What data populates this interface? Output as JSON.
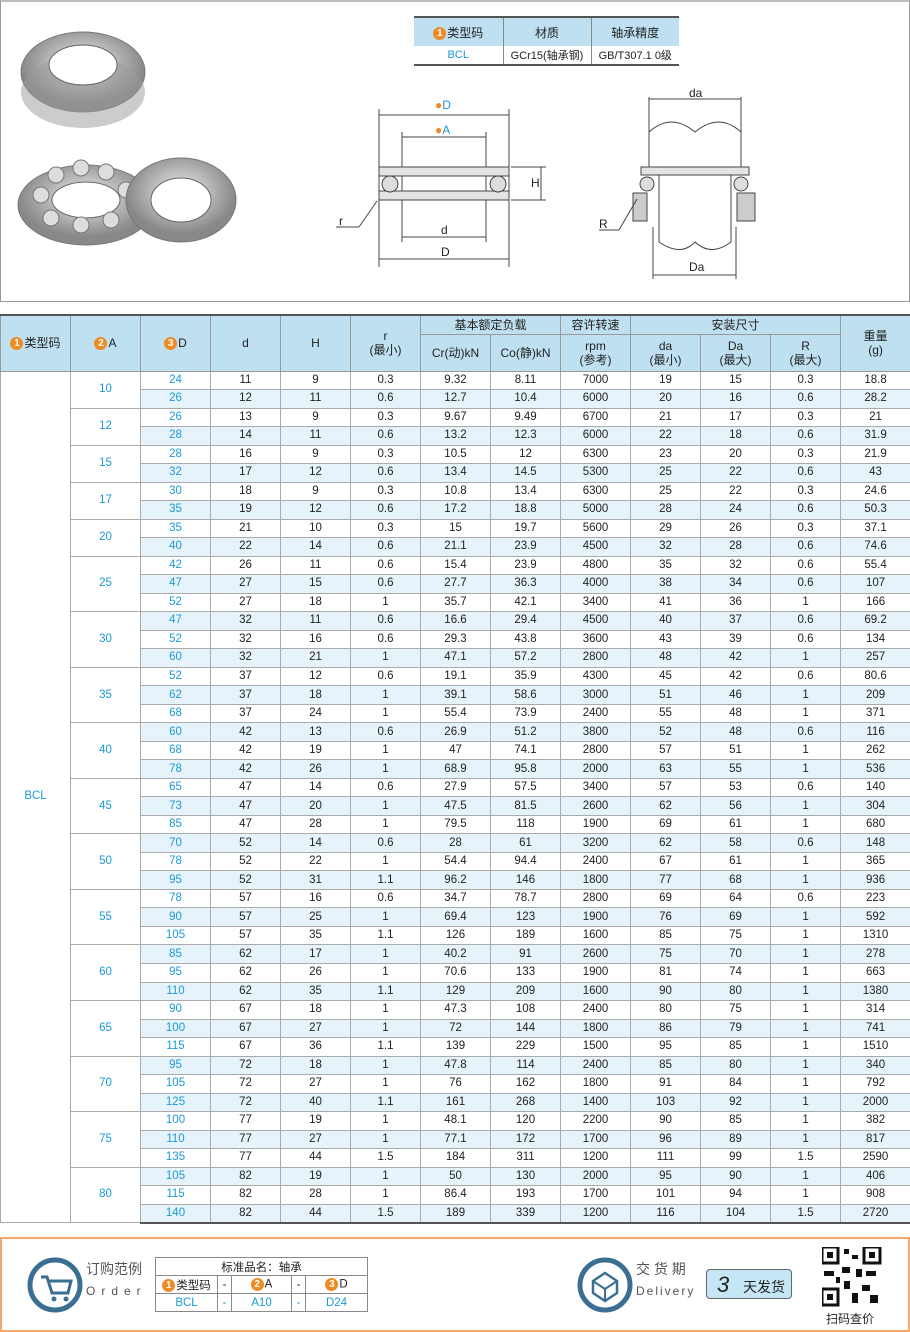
{
  "material_table": {
    "headers": [
      "类型码",
      "材质",
      "轴承精度"
    ],
    "row": [
      "BCL",
      "GCr15(轴承钢)",
      "GB/T307.1 0级"
    ]
  },
  "diagram": {
    "labels": {
      "D_top": "D",
      "A": "A",
      "H": "H",
      "r": "r",
      "d": "d",
      "D": "D",
      "da": "da",
      "R": "R",
      "Da": "Da"
    },
    "num1": "1",
    "num2": "2",
    "num3": "3"
  },
  "table": {
    "headers": {
      "type": "类型码",
      "A": "A",
      "D": "D",
      "d": "d",
      "H": "H",
      "r": "r",
      "r_sub": "(最小)",
      "load": "基本额定负载",
      "cr": "Cr(动)kN",
      "co": "Co(静)kN",
      "speed": "容许转速",
      "speed_unit": "rpm",
      "speed_sub": "(参考)",
      "install": "安装尺寸",
      "da": "da",
      "da_sub": "(最小)",
      "Da": "Da",
      "Da_sub": "(最大)",
      "R": "R",
      "R_sub": "(最大)",
      "weight": "重量",
      "weight_unit": "(g)"
    },
    "type_value": "BCL",
    "groups": [
      {
        "A": "10",
        "rows": [
          [
            "24",
            "11",
            "9",
            "0.3",
            "9.32",
            "8.11",
            "7000",
            "19",
            "15",
            "0.3",
            "18.8"
          ],
          [
            "26",
            "12",
            "11",
            "0.6",
            "12.7",
            "10.4",
            "6000",
            "20",
            "16",
            "0.6",
            "28.2"
          ]
        ]
      },
      {
        "A": "12",
        "rows": [
          [
            "26",
            "13",
            "9",
            "0.3",
            "9.67",
            "9.49",
            "6700",
            "21",
            "17",
            "0.3",
            "21"
          ],
          [
            "28",
            "14",
            "11",
            "0.6",
            "13.2",
            "12.3",
            "6000",
            "22",
            "18",
            "0.6",
            "31.9"
          ]
        ]
      },
      {
        "A": "15",
        "rows": [
          [
            "28",
            "16",
            "9",
            "0.3",
            "10.5",
            "12",
            "6300",
            "23",
            "20",
            "0.3",
            "21.9"
          ],
          [
            "32",
            "17",
            "12",
            "0.6",
            "13.4",
            "14.5",
            "5300",
            "25",
            "22",
            "0.6",
            "43"
          ]
        ]
      },
      {
        "A": "17",
        "rows": [
          [
            "30",
            "18",
            "9",
            "0.3",
            "10.8",
            "13.4",
            "6300",
            "25",
            "22",
            "0.3",
            "24.6"
          ],
          [
            "35",
            "19",
            "12",
            "0.6",
            "17.2",
            "18.8",
            "5000",
            "28",
            "24",
            "0.6",
            "50.3"
          ]
        ]
      },
      {
        "A": "20",
        "rows": [
          [
            "35",
            "21",
            "10",
            "0.3",
            "15",
            "19.7",
            "5600",
            "29",
            "26",
            "0.3",
            "37.1"
          ],
          [
            "40",
            "22",
            "14",
            "0.6",
            "21.1",
            "23.9",
            "4500",
            "32",
            "28",
            "0.6",
            "74.6"
          ]
        ]
      },
      {
        "A": "25",
        "rows": [
          [
            "42",
            "26",
            "11",
            "0.6",
            "15.4",
            "23.9",
            "4800",
            "35",
            "32",
            "0.6",
            "55.4"
          ],
          [
            "47",
            "27",
            "15",
            "0.6",
            "27.7",
            "36.3",
            "4000",
            "38",
            "34",
            "0.6",
            "107"
          ],
          [
            "52",
            "27",
            "18",
            "1",
            "35.7",
            "42.1",
            "3400",
            "41",
            "36",
            "1",
            "166"
          ]
        ]
      },
      {
        "A": "30",
        "rows": [
          [
            "47",
            "32",
            "11",
            "0.6",
            "16.6",
            "29.4",
            "4500",
            "40",
            "37",
            "0.6",
            "69.2"
          ],
          [
            "52",
            "32",
            "16",
            "0.6",
            "29.3",
            "43.8",
            "3600",
            "43",
            "39",
            "0.6",
            "134"
          ],
          [
            "60",
            "32",
            "21",
            "1",
            "47.1",
            "57.2",
            "2800",
            "48",
            "42",
            "1",
            "257"
          ]
        ]
      },
      {
        "A": "35",
        "rows": [
          [
            "52",
            "37",
            "12",
            "0.6",
            "19.1",
            "35.9",
            "4300",
            "45",
            "42",
            "0.6",
            "80.6"
          ],
          [
            "62",
            "37",
            "18",
            "1",
            "39.1",
            "58.6",
            "3000",
            "51",
            "46",
            "1",
            "209"
          ],
          [
            "68",
            "37",
            "24",
            "1",
            "55.4",
            "73.9",
            "2400",
            "55",
            "48",
            "1",
            "371"
          ]
        ]
      },
      {
        "A": "40",
        "rows": [
          [
            "60",
            "42",
            "13",
            "0.6",
            "26.9",
            "51.2",
            "3800",
            "52",
            "48",
            "0.6",
            "116"
          ],
          [
            "68",
            "42",
            "19",
            "1",
            "47",
            "74.1",
            "2800",
            "57",
            "51",
            "1",
            "262"
          ],
          [
            "78",
            "42",
            "26",
            "1",
            "68.9",
            "95.8",
            "2000",
            "63",
            "55",
            "1",
            "536"
          ]
        ]
      },
      {
        "A": "45",
        "rows": [
          [
            "65",
            "47",
            "14",
            "0.6",
            "27.9",
            "57.5",
            "3400",
            "57",
            "53",
            "0.6",
            "140"
          ],
          [
            "73",
            "47",
            "20",
            "1",
            "47.5",
            "81.5",
            "2600",
            "62",
            "56",
            "1",
            "304"
          ],
          [
            "85",
            "47",
            "28",
            "1",
            "79.5",
            "118",
            "1900",
            "69",
            "61",
            "1",
            "680"
          ]
        ]
      },
      {
        "A": "50",
        "rows": [
          [
            "70",
            "52",
            "14",
            "0.6",
            "28",
            "61",
            "3200",
            "62",
            "58",
            "0.6",
            "148"
          ],
          [
            "78",
            "52",
            "22",
            "1",
            "54.4",
            "94.4",
            "2400",
            "67",
            "61",
            "1",
            "365"
          ],
          [
            "95",
            "52",
            "31",
            "1.1",
            "96.2",
            "146",
            "1800",
            "77",
            "68",
            "1",
            "936"
          ]
        ]
      },
      {
        "A": "55",
        "rows": [
          [
            "78",
            "57",
            "16",
            "0.6",
            "34.7",
            "78.7",
            "2800",
            "69",
            "64",
            "0.6",
            "223"
          ],
          [
            "90",
            "57",
            "25",
            "1",
            "69.4",
            "123",
            "1900",
            "76",
            "69",
            "1",
            "592"
          ],
          [
            "105",
            "57",
            "35",
            "1.1",
            "126",
            "189",
            "1600",
            "85",
            "75",
            "1",
            "1310"
          ]
        ]
      },
      {
        "A": "60",
        "rows": [
          [
            "85",
            "62",
            "17",
            "1",
            "40.2",
            "91",
            "2600",
            "75",
            "70",
            "1",
            "278"
          ],
          [
            "95",
            "62",
            "26",
            "1",
            "70.6",
            "133",
            "1900",
            "81",
            "74",
            "1",
            "663"
          ],
          [
            "110",
            "62",
            "35",
            "1.1",
            "129",
            "209",
            "1600",
            "90",
            "80",
            "1",
            "1380"
          ]
        ]
      },
      {
        "A": "65",
        "rows": [
          [
            "90",
            "67",
            "18",
            "1",
            "47.3",
            "108",
            "2400",
            "80",
            "75",
            "1",
            "314"
          ],
          [
            "100",
            "67",
            "27",
            "1",
            "72",
            "144",
            "1800",
            "86",
            "79",
            "1",
            "741"
          ],
          [
            "115",
            "67",
            "36",
            "1.1",
            "139",
            "229",
            "1500",
            "95",
            "85",
            "1",
            "1510"
          ]
        ]
      },
      {
        "A": "70",
        "rows": [
          [
            "95",
            "72",
            "18",
            "1",
            "47.8",
            "114",
            "2400",
            "85",
            "80",
            "1",
            "340"
          ],
          [
            "105",
            "72",
            "27",
            "1",
            "76",
            "162",
            "1800",
            "91",
            "84",
            "1",
            "792"
          ],
          [
            "125",
            "72",
            "40",
            "1.1",
            "161",
            "268",
            "1400",
            "103",
            "92",
            "1",
            "2000"
          ]
        ]
      },
      {
        "A": "75",
        "rows": [
          [
            "100",
            "77",
            "19",
            "1",
            "48.1",
            "120",
            "2200",
            "90",
            "85",
            "1",
            "382"
          ],
          [
            "110",
            "77",
            "27",
            "1",
            "77.1",
            "172",
            "1700",
            "96",
            "89",
            "1",
            "817"
          ],
          [
            "135",
            "77",
            "44",
            "1.5",
            "184",
            "311",
            "1200",
            "111",
            "99",
            "1.5",
            "2590"
          ]
        ]
      },
      {
        "A": "80",
        "rows": [
          [
            "105",
            "82",
            "19",
            "1",
            "50",
            "130",
            "2000",
            "95",
            "90",
            "1",
            "406"
          ],
          [
            "115",
            "82",
            "28",
            "1",
            "86.4",
            "193",
            "1700",
            "101",
            "94",
            "1",
            "908"
          ],
          [
            "140",
            "82",
            "44",
            "1.5",
            "189",
            "339",
            "1200",
            "116",
            "104",
            "1.5",
            "2720"
          ]
        ]
      }
    ]
  },
  "footer": {
    "order_cn": "订购范例",
    "order_en": "Order",
    "std_name": "标准品名：轴承",
    "h_type": "类型码",
    "h_A": "A",
    "h_D": "D",
    "dash": "-",
    "v_type": "BCL",
    "v_A": "A10",
    "v_D": "D24",
    "delivery_cn": "交 货 期",
    "delivery_en": "Delivery",
    "days": "3",
    "days_label": "天发货",
    "qr_label": "扫码查价"
  },
  "colors": {
    "header_bg": "#bfe0f0",
    "accent_blue": "#1a9ad6",
    "number_orange": "#f08a24",
    "footer_border": "#f5a86a"
  }
}
